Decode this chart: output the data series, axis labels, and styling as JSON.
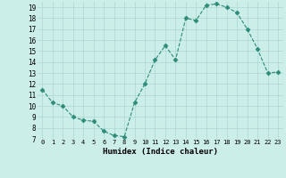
{
  "x": [
    0,
    1,
    2,
    3,
    4,
    5,
    6,
    7,
    8,
    9,
    10,
    11,
    12,
    13,
    14,
    15,
    16,
    17,
    18,
    19,
    20,
    21,
    22,
    23
  ],
  "y": [
    11.5,
    10.3,
    10.0,
    9.0,
    8.7,
    8.6,
    7.7,
    7.3,
    7.2,
    10.3,
    12.0,
    14.2,
    15.5,
    14.2,
    18.0,
    17.8,
    19.2,
    19.3,
    19.0,
    18.5,
    17.0,
    15.2,
    13.0,
    13.1
  ],
  "line_color": "#2d8b7a",
  "markersize": 2.5,
  "bg_color": "#cceee8",
  "grid_color": "#aad8d0",
  "xlabel": "Humidex (Indice chaleur)",
  "xlim": [
    -0.5,
    23.5
  ],
  "ylim": [
    7,
    19.5
  ],
  "yticks": [
    7,
    8,
    9,
    10,
    11,
    12,
    13,
    14,
    15,
    16,
    17,
    18,
    19
  ],
  "xticks": [
    0,
    1,
    2,
    3,
    4,
    5,
    6,
    7,
    8,
    9,
    10,
    11,
    12,
    13,
    14,
    15,
    16,
    17,
    18,
    19,
    20,
    21,
    22,
    23
  ],
  "xtick_labels": [
    "0",
    "1",
    "2",
    "3",
    "4",
    "5",
    "6",
    "7",
    "8",
    "9",
    "10",
    "11",
    "12",
    "13",
    "14",
    "15",
    "16",
    "17",
    "18",
    "19",
    "20",
    "21",
    "22",
    "23"
  ]
}
